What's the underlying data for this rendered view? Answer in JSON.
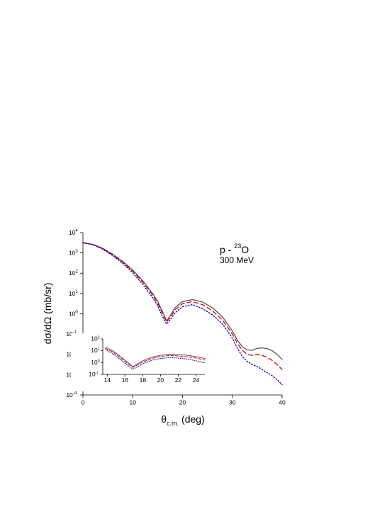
{
  "chart_data": {
    "type": "line",
    "xlabel": {
      "base": "θ",
      "sub": "c.m.",
      "unit": "(deg)"
    },
    "ylabel": "dσ/dΩ (mb/sr)",
    "xlim": [
      0,
      40
    ],
    "ylim_log10": [
      -4,
      4
    ],
    "yscale": "log",
    "x_ticks": [
      "0",
      "10",
      "20",
      "30",
      "40"
    ],
    "y_ticks": [
      {
        "base": "10",
        "exp": "4"
      },
      {
        "base": "10",
        "exp": "3"
      },
      {
        "base": "10",
        "exp": "2"
      },
      {
        "base": "10",
        "exp": "1"
      },
      {
        "base": "10",
        "exp": "0"
      },
      {
        "base": "10",
        "exp": "-1"
      },
      {
        "base": "10",
        "exp": "-2"
      },
      {
        "base": "10",
        "exp": "-3"
      },
      {
        "base": "10",
        "exp": "-4"
      }
    ],
    "annotation": {
      "line1_prefix": "p - ",
      "mass": "23",
      "element": "O",
      "line2": "300 MeV"
    },
    "x": [
      0,
      2,
      4,
      6,
      8,
      10,
      12,
      14,
      15,
      16,
      16.8,
      17.5,
      18.5,
      20,
      22,
      24,
      26,
      28,
      30,
      31,
      32,
      33,
      34,
      35,
      36,
      37,
      38,
      39,
      40
    ],
    "series": [
      {
        "style": "solid",
        "color": "#555555",
        "log10_y": [
          3.5,
          3.42,
          3.22,
          2.93,
          2.58,
          2.15,
          1.63,
          1.0,
          0.62,
          0.1,
          -0.35,
          -0.1,
          0.3,
          0.6,
          0.7,
          0.58,
          0.3,
          -0.15,
          -0.85,
          -1.3,
          -1.62,
          -1.78,
          -1.8,
          -1.7,
          -1.68,
          -1.72,
          -1.82,
          -2.0,
          -2.25
        ]
      },
      {
        "style": "dashed",
        "color": "#dd0000",
        "log10_y": [
          3.5,
          3.41,
          3.2,
          2.9,
          2.53,
          2.1,
          1.56,
          0.92,
          0.52,
          0.0,
          -0.4,
          -0.2,
          0.2,
          0.5,
          0.6,
          0.45,
          0.15,
          -0.3,
          -1.0,
          -1.45,
          -1.8,
          -2.0,
          -2.05,
          -2.0,
          -2.05,
          -2.15,
          -2.3,
          -2.5,
          -2.75
        ]
      },
      {
        "style": "dotted",
        "color": "#0000cc",
        "log10_y": [
          3.5,
          3.4,
          3.18,
          2.86,
          2.48,
          2.02,
          1.45,
          0.8,
          0.4,
          -0.15,
          -0.5,
          -0.3,
          0.05,
          0.35,
          0.45,
          0.25,
          -0.05,
          -0.5,
          -1.2,
          -1.7,
          -2.1,
          -2.35,
          -2.5,
          -2.6,
          -2.75,
          -2.9,
          -3.05,
          -3.25,
          -3.5
        ]
      }
    ],
    "inset": {
      "xlim": [
        13.5,
        25
      ],
      "ylim_log10": [
        -1,
        2
      ],
      "x_ticks": [
        "14",
        "16",
        "18",
        "20",
        "22",
        "24"
      ],
      "y_ticks": [
        {
          "base": "10",
          "exp": "2"
        },
        {
          "base": "10",
          "exp": "1"
        },
        {
          "base": "10",
          "exp": "0"
        },
        {
          "base": "10",
          "exp": "-1"
        }
      ],
      "x": [
        13.8,
        14.5,
        15,
        15.5,
        16,
        16.5,
        16.9,
        17.3,
        18,
        19,
        20,
        21,
        22,
        23,
        24,
        25
      ],
      "series": [
        {
          "style": "solid",
          "color": "#555555",
          "log10_y": [
            1.3,
            1.05,
            0.8,
            0.5,
            0.2,
            -0.1,
            -0.35,
            -0.15,
            0.15,
            0.45,
            0.62,
            0.7,
            0.68,
            0.62,
            0.5,
            0.35
          ]
        },
        {
          "style": "dashed",
          "color": "#dd0000",
          "log10_y": [
            1.2,
            0.95,
            0.7,
            0.4,
            0.1,
            -0.2,
            -0.4,
            -0.25,
            0.05,
            0.35,
            0.52,
            0.6,
            0.56,
            0.5,
            0.38,
            0.22
          ]
        },
        {
          "style": "dotted",
          "color": "#0000cc",
          "log10_y": [
            1.1,
            0.8,
            0.55,
            0.25,
            -0.05,
            -0.35,
            -0.55,
            -0.4,
            -0.1,
            0.2,
            0.35,
            0.42,
            0.38,
            0.3,
            0.15,
            -0.02
          ]
        }
      ]
    }
  }
}
